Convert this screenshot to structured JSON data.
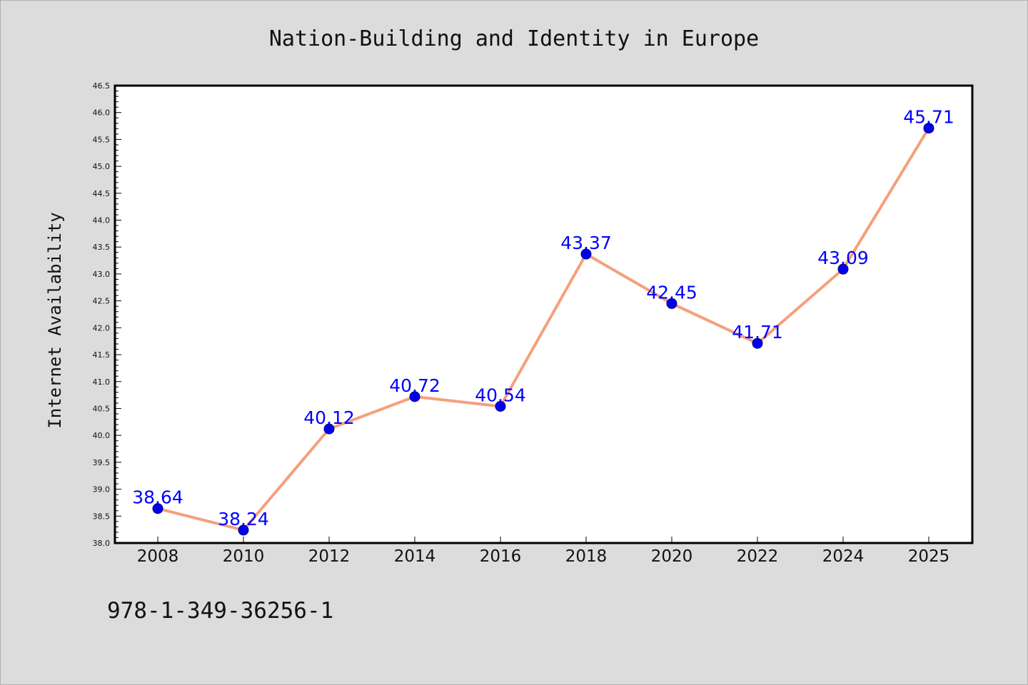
{
  "chart_data": {
    "type": "line",
    "title": "Nation-Building and Identity in Europe",
    "xlabel": "",
    "ylabel": "Internet Availability",
    "categories": [
      "2008",
      "2010",
      "2012",
      "2014",
      "2016",
      "2018",
      "2020",
      "2022",
      "2024",
      "2025"
    ],
    "series": [
      {
        "values": [
          38.64,
          38.24,
          40.12,
          40.72,
          40.54,
          43.37,
          42.45,
          41.71,
          43.09,
          45.71
        ],
        "labels": [
          "38.64",
          "38.24",
          "40.12",
          "40.72",
          "40.54",
          "43.37",
          "42.45",
          "41.71",
          "43.09",
          "45.71"
        ]
      }
    ],
    "ylim": [
      38.0,
      46.5
    ],
    "yticks": [
      "38.0",
      "38.5",
      "39.0",
      "39.5",
      "40.0",
      "40.5",
      "41.0",
      "41.5",
      "42.0",
      "42.5",
      "43.0",
      "43.5",
      "44.0",
      "44.5",
      "45.0",
      "45.5",
      "46.0",
      "46.5"
    ],
    "grid": false,
    "legend": "none",
    "line_color": "#f4a07c",
    "marker_color": "#0000ee",
    "label_color": "#0000ff",
    "background_color": "#dcdcdc",
    "plot_background_color": "#ffffff"
  },
  "footnote": "978-1-349-36256-1"
}
